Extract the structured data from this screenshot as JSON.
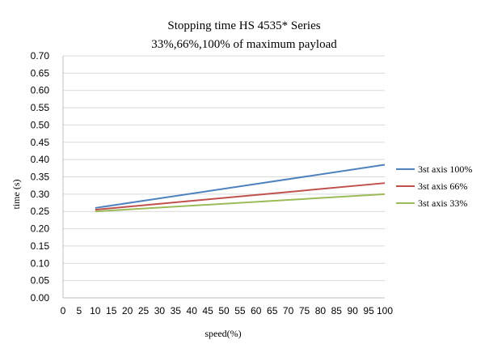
{
  "chart_data": {
    "type": "line",
    "title": "Stopping time HS 4535* Series",
    "subtitle": "33%,66%,100% of maximum payload",
    "xlabel": "speed(%)",
    "ylabel": "time (s)",
    "xlim": [
      0,
      100
    ],
    "ylim": [
      0,
      0.7
    ],
    "x_ticks": [
      "0",
      "5",
      "10",
      "15",
      "20",
      "25",
      "30",
      "35",
      "40",
      "45",
      "50",
      "55",
      "60",
      "65",
      "70",
      "75",
      "80",
      "85",
      "90",
      "95",
      "100"
    ],
    "y_ticks": [
      "0.00",
      "0.05",
      "0.10",
      "0.15",
      "0.20",
      "0.25",
      "0.30",
      "0.35",
      "0.40",
      "0.45",
      "0.50",
      "0.55",
      "0.60",
      "0.65",
      "0.70"
    ],
    "grid": true,
    "legend_position": "right",
    "series": [
      {
        "name": "3st axis 100%",
        "color": "#4f81bd",
        "x": [
          10,
          100
        ],
        "y": [
          0.26,
          0.385
        ]
      },
      {
        "name": "3st axis 66%",
        "color": "#c0504d",
        "x": [
          10,
          100
        ],
        "y": [
          0.255,
          0.332
        ]
      },
      {
        "name": "3st axis 33%",
        "color": "#9bbb59",
        "x": [
          10,
          100
        ],
        "y": [
          0.25,
          0.3
        ]
      }
    ]
  }
}
